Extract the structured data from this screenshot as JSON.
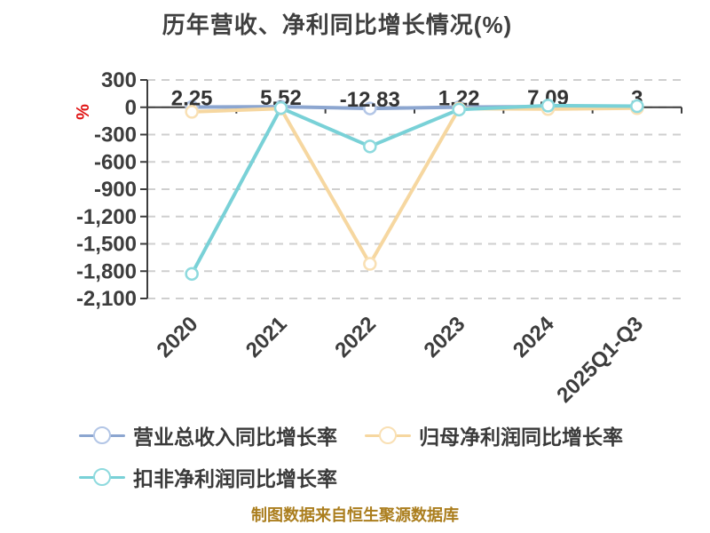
{
  "caption": "制图数据来自恒生聚源数据库",
  "chart_data": {
    "type": "line",
    "title": "历年营收、净利同比增长情况(%)",
    "title_color": "#3f3f3f",
    "y_axis_name": "%",
    "y_axis_name_color": "#e01212",
    "categories": [
      "2020",
      "2021",
      "2022",
      "2023",
      "2024",
      "2025Q1-Q3"
    ],
    "y_ticks": [
      300,
      0,
      -300,
      -600,
      -900,
      -1200,
      -1500,
      -1800,
      -2100
    ],
    "y_tick_labels": [
      "300",
      "0",
      "-300",
      "-600",
      "-900",
      "-1,200",
      "-1,500",
      "-1,800",
      "-2,100"
    ],
    "ylim": [
      -2100,
      300
    ],
    "grid": "horizontal dashed",
    "grid_color": "#cfcfcf",
    "axis_color": "#3d3d3d",
    "tick_label_color": "#3d3d3d",
    "data_label_color": "#333333",
    "legend_position": "bottom-left, two rows",
    "series": [
      {
        "name": "营业总收入同比增长率",
        "color": "#8ca6d0",
        "marker_color": "#b3c6e6",
        "values": [
          2.25,
          5.52,
          -12.83,
          1.22,
          7.09,
          3
        ],
        "labels": [
          "2.25",
          "5.52",
          "-12.83",
          "1.22",
          "7.09",
          "3"
        ],
        "show_labels": true
      },
      {
        "name": "归母净利润同比增长率",
        "color": "#f6d7a0",
        "marker_color": "#f9e0b4",
        "values": [
          -50,
          -15,
          -1720,
          -15,
          -20,
          -10
        ],
        "show_labels": false
      },
      {
        "name": "扣非净利润同比增长率",
        "color": "#79d1d7",
        "marker_color": "#8edade",
        "values": [
          -1830,
          -8,
          -430,
          -25,
          18,
          12
        ],
        "show_labels": false
      }
    ]
  },
  "legend_rows": [
    {
      "series_index": 0,
      "x": 89,
      "y": 478
    },
    {
      "series_index": 1,
      "x": 411,
      "y": 478
    },
    {
      "series_index": 2,
      "x": 89,
      "y": 525
    }
  ]
}
